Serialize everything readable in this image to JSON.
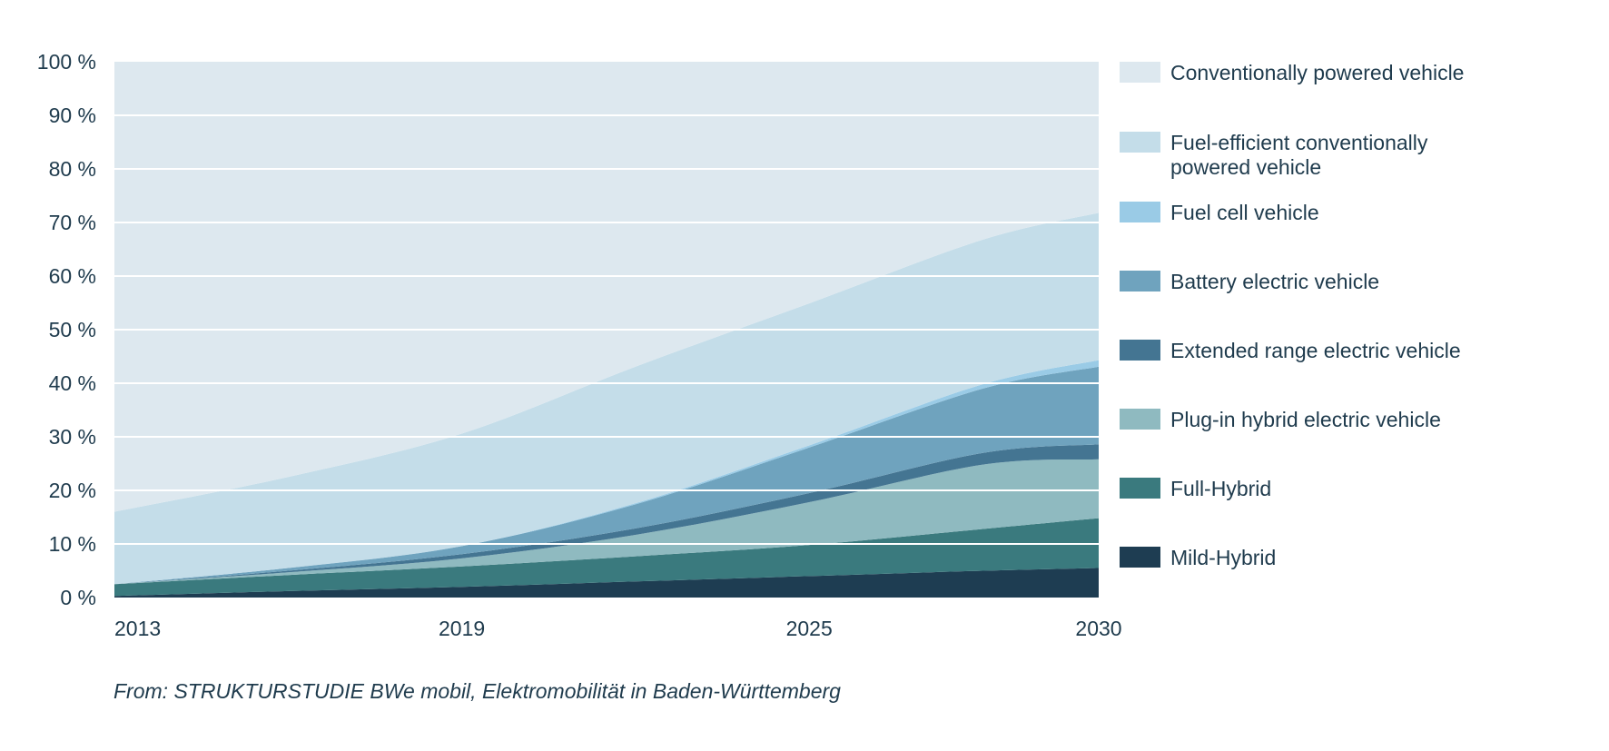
{
  "chart_data": {
    "type": "area",
    "stacked": true,
    "x": [
      2013,
      2016,
      2019,
      2022,
      2025,
      2028,
      2030
    ],
    "x_ticks": [
      "2013",
      "2019",
      "2025",
      "2030"
    ],
    "ylim": [
      0,
      100
    ],
    "y_ticks": [
      "0 %",
      "10 %",
      "20 %",
      "30 %",
      "40 %",
      "50 %",
      "60 %",
      "70 %",
      "80 %",
      "90 %",
      "100 %"
    ],
    "grid": true,
    "legend_position": "right",
    "series": [
      {
        "name": "Mild-Hybrid",
        "color": "#1e3d52",
        "values": [
          0.3,
          1.2,
          2.0,
          3.0,
          4.0,
          5.0,
          5.5
        ]
      },
      {
        "name": "Full-Hybrid",
        "color": "#3a7a7e",
        "values": [
          2.2,
          3.0,
          3.8,
          4.7,
          5.8,
          7.8,
          9.3
        ]
      },
      {
        "name": "Plug-in hybrid electric vehicle",
        "color": "#8fbac0",
        "values": [
          0.0,
          0.5,
          1.5,
          4.0,
          8.0,
          12.0,
          11.0
        ]
      },
      {
        "name": "Extended range electric vehicle",
        "color": "#447592",
        "values": [
          0.0,
          0.3,
          0.8,
          1.2,
          1.7,
          2.2,
          2.8
        ]
      },
      {
        "name": "Battery electric vehicle",
        "color": "#6fa3be",
        "values": [
          0.0,
          0.5,
          1.5,
          4.5,
          8.5,
          12.0,
          14.5
        ]
      },
      {
        "name": "Fuel cell vehicle",
        "color": "#9acbe6",
        "values": [
          0.0,
          0.0,
          0.0,
          0.2,
          0.4,
          0.8,
          1.2
        ]
      },
      {
        "name": "Fuel-efficient conventionally powered vehicle",
        "legend_lines": [
          "Fuel-efficient conventionally",
          "powered vehicle"
        ],
        "color": "#c4dde9",
        "values": [
          13.5,
          17.0,
          21.0,
          25.5,
          26.5,
          27.0,
          27.5
        ]
      },
      {
        "name": "Conventionally powered vehicle",
        "color": "#dde8ef",
        "values": [
          84.0,
          77.5,
          69.4,
          56.9,
          45.1,
          33.2,
          28.2
        ]
      }
    ],
    "legend_order": [
      7,
      6,
      5,
      4,
      3,
      2,
      1,
      0
    ],
    "source": "From: STRUKTURSTUDIE BWe mobil, Elektromobilität in Baden-Württemberg"
  }
}
